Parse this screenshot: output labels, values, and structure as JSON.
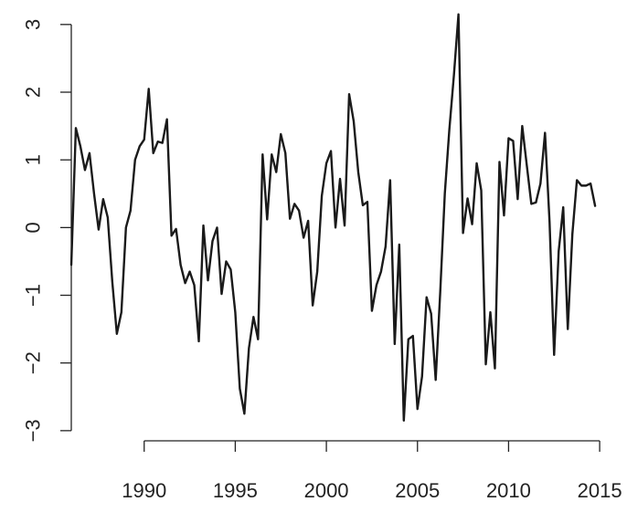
{
  "chart_data": {
    "type": "line",
    "title": "",
    "xlabel": "",
    "ylabel": "",
    "xlim": [
      1986.0,
      2016.5
    ],
    "ylim": [
      -3.15,
      3.2
    ],
    "x_ticks": [
      1990,
      1995,
      2000,
      2005,
      2010,
      2015
    ],
    "y_ticks": [
      -3,
      -2,
      -1,
      0,
      1,
      2,
      3
    ],
    "x_tick_labels": [
      "1990",
      "1995",
      "2000",
      "2005",
      "2010",
      "2015"
    ],
    "y_tick_labels": [
      "−3",
      "−2",
      "−1",
      "0",
      "1",
      "2",
      "3"
    ],
    "grid": false,
    "legend": "none",
    "line_color": "#1a1a1a",
    "series": [
      {
        "x": [
          1986.0,
          1986.25,
          1986.5,
          1986.75,
          1987.0,
          1987.25,
          1987.5,
          1987.75,
          1988.0,
          1988.25,
          1988.5,
          1988.75,
          1989.0,
          1989.25,
          1989.5,
          1989.75,
          1990.0,
          1990.25,
          1990.5,
          1990.75,
          1991.0,
          1991.25,
          1991.5,
          1991.75,
          1992.0,
          1992.25,
          1992.5,
          1992.75,
          1993.0,
          1993.25,
          1993.5,
          1993.75,
          1994.0,
          1994.25,
          1994.5,
          1994.75,
          1995.0,
          1995.25,
          1995.5,
          1995.75,
          1996.0,
          1996.25,
          1996.5,
          1996.75,
          1997.0,
          1997.25,
          1997.5,
          1997.75,
          1998.0,
          1998.25,
          1998.5,
          1998.75,
          1999.0,
          1999.25,
          1999.5,
          1999.75,
          2000.0,
          2000.25,
          2000.5,
          2000.75,
          2001.0,
          2001.25,
          2001.5,
          2001.75,
          2002.0,
          2002.25,
          2002.5,
          2002.75,
          2003.0,
          2003.25,
          2003.5,
          2003.75,
          2004.0,
          2004.25,
          2004.5,
          2004.75,
          2005.0,
          2005.25,
          2005.5,
          2005.75,
          2006.0,
          2006.25,
          2006.5,
          2006.75,
          2007.0,
          2007.25,
          2007.5,
          2007.75,
          2008.0,
          2008.25,
          2008.5,
          2008.75,
          2009.0,
          2009.25,
          2009.5,
          2009.75,
          2010.0,
          2010.25,
          2010.5,
          2010.75,
          2011.0,
          2011.25,
          2011.5,
          2011.75,
          2012.0,
          2012.25,
          2012.5,
          2012.75,
          2013.0,
          2013.25,
          2013.5,
          2013.75,
          2014.0,
          2014.25,
          2014.5,
          2014.75
        ],
        "y": [
          -0.55,
          1.47,
          1.2,
          0.85,
          1.1,
          0.5,
          -0.03,
          0.42,
          0.15,
          -0.8,
          -1.57,
          -1.25,
          0.0,
          0.25,
          1.0,
          1.2,
          1.3,
          2.05,
          1.1,
          1.27,
          1.25,
          1.6,
          -0.12,
          -0.02,
          -0.55,
          -0.82,
          -0.65,
          -0.85,
          -1.68,
          0.03,
          -0.78,
          -0.2,
          0.0,
          -0.98,
          -0.5,
          -0.62,
          -1.25,
          -2.38,
          -2.75,
          -1.78,
          -1.32,
          -1.65,
          1.08,
          0.12,
          1.08,
          0.82,
          1.38,
          1.1,
          0.13,
          0.35,
          0.25,
          -0.15,
          0.1,
          -1.15,
          -0.65,
          0.47,
          0.95,
          1.13,
          0.0,
          0.72,
          0.03,
          1.97,
          1.57,
          0.82,
          0.33,
          0.38,
          -1.23,
          -0.85,
          -0.65,
          -0.28,
          0.7,
          -1.72,
          -0.25,
          -2.85,
          -1.65,
          -1.6,
          -2.68,
          -2.2,
          -1.03,
          -1.27,
          -2.25,
          -0.95,
          0.5,
          1.45,
          2.25,
          3.15,
          -0.08,
          0.43,
          0.05,
          0.95,
          0.55,
          -2.02,
          -1.25,
          -2.08,
          0.97,
          0.18,
          1.32,
          1.28,
          0.42,
          1.5,
          0.92,
          0.35,
          0.37,
          0.65,
          1.4,
          0.08,
          -1.88,
          -0.35,
          0.3,
          -1.5,
          -0.1,
          0.7,
          0.62,
          0.62,
          0.65,
          0.32
        ]
      }
    ]
  }
}
